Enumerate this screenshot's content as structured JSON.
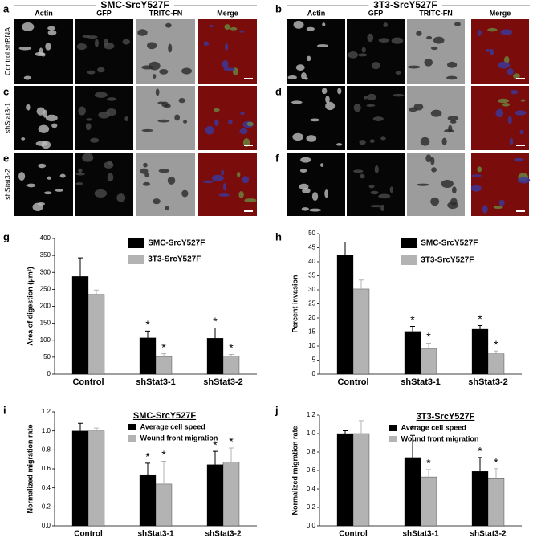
{
  "figure": {
    "groups": [
      {
        "title": "SMC-SrcY527F",
        "columns": [
          "Actin",
          "GFP",
          "TRITC-FN",
          "Merge"
        ],
        "panels": [
          {
            "label": "a",
            "row": "Control shRNA"
          },
          {
            "label": "c",
            "row": "shStat3-1"
          },
          {
            "label": "e",
            "row": "shStat3-2"
          }
        ]
      },
      {
        "title": "3T3-SrcY527F",
        "columns": [
          "Actin",
          "GFP",
          "TRITC-FN",
          "Merge"
        ],
        "panels": [
          {
            "label": "b"
          },
          {
            "label": "d"
          },
          {
            "label": "f"
          }
        ]
      }
    ]
  },
  "chart_data": [
    {
      "type": "bar",
      "label": "g",
      "ylabel": "Area of digestion (μm²)",
      "categories": [
        "Control",
        "shStat3-1",
        "shStat3-2"
      ],
      "series": [
        {
          "name": "SMC-SrcY527F",
          "color": "#000000",
          "values": [
            288,
            107,
            106
          ],
          "errors": [
            55,
            20,
            30
          ],
          "markers": [
            null,
            "*",
            "*"
          ]
        },
        {
          "name": "3T3-SrcY527F",
          "color": "#b3b3b3",
          "values": [
            235,
            52,
            53
          ],
          "errors": [
            13,
            8,
            5
          ],
          "markers": [
            null,
            "*",
            "*"
          ]
        }
      ],
      "ylim": [
        0,
        400
      ],
      "yticks": [
        0,
        50,
        100,
        150,
        200,
        250,
        300,
        350,
        400
      ]
    },
    {
      "type": "bar",
      "label": "h",
      "ylabel": "Percent invasion",
      "categories": [
        "Control",
        "shStat3-1",
        "shStat3-2"
      ],
      "series": [
        {
          "name": "SMC-SrcY527F",
          "color": "#000000",
          "values": [
            42.5,
            15.2,
            16
          ],
          "errors": [
            4.5,
            1.8,
            1.3
          ],
          "markers": [
            null,
            "*",
            "*"
          ]
        },
        {
          "name": "3T3-SrcY527F",
          "color": "#b3b3b3",
          "values": [
            30.3,
            9,
            7.2
          ],
          "errors": [
            3.2,
            2,
            1
          ],
          "markers": [
            null,
            "*",
            "*"
          ]
        }
      ],
      "ylim": [
        0,
        50
      ],
      "yticks": [
        0,
        5,
        10,
        15,
        20,
        25,
        30,
        35,
        40,
        45,
        50
      ]
    },
    {
      "type": "bar",
      "label": "i",
      "title": "SMC-SrcY527F",
      "ylabel": "Normalized migration rate",
      "categories": [
        "Control",
        "shStat3-1",
        "shStat3-2"
      ],
      "series": [
        {
          "name": "Average cell speed",
          "color": "#000000",
          "values": [
            1.0,
            0.54,
            0.645
          ],
          "errors": [
            0.08,
            0.12,
            0.14
          ],
          "markers": [
            null,
            "*",
            "*"
          ]
        },
        {
          "name": "Wound front migration",
          "color": "#b3b3b3",
          "values": [
            1.0,
            0.44,
            0.67
          ],
          "errors": [
            0.03,
            0.24,
            0.15
          ],
          "markers": [
            null,
            "*",
            "*"
          ]
        }
      ],
      "ylim": [
        0,
        1.2
      ],
      "yticks": [
        {
          "value": 0,
          "label": "0.0"
        },
        0.2,
        0.4,
        0.6,
        0.8,
        {
          "value": 1,
          "label": "1.0"
        },
        1.2
      ]
    },
    {
      "type": "bar",
      "label": "j",
      "title": "3T3-SrcY527F",
      "ylabel": "Normalized migration rate",
      "categories": [
        "Control",
        "shStat3-1",
        "shStat3-2"
      ],
      "series": [
        {
          "name": "Average cell speed",
          "color": "#000000",
          "values": [
            1.0,
            0.74,
            0.59
          ],
          "errors": [
            0.03,
            0.24,
            0.15
          ],
          "markers": [
            null,
            "*",
            "*"
          ]
        },
        {
          "name": "Wound front migration",
          "color": "#b3b3b3",
          "values": [
            1.0,
            0.53,
            0.52
          ],
          "errors": [
            0.14,
            0.08,
            0.1
          ],
          "markers": [
            null,
            "*",
            "*"
          ]
        }
      ],
      "ylim": [
        0,
        1.2
      ],
      "yticks": [
        {
          "value": 0,
          "label": "0.0"
        },
        0.2,
        0.4,
        0.6,
        0.8,
        {
          "value": 1,
          "label": "1.0"
        },
        1.2
      ]
    }
  ]
}
